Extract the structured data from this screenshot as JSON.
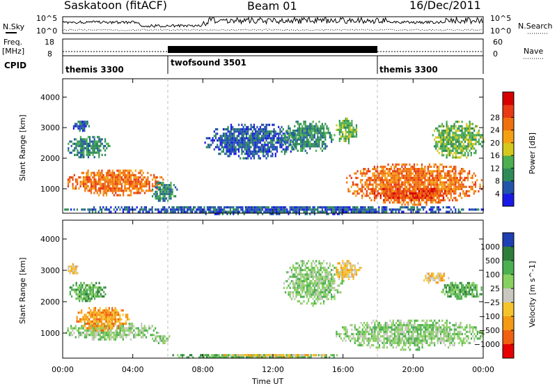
{
  "header": {
    "site": "Saskatoon (fitACF)",
    "beam": "Beam 01",
    "date": "16/Dec/2011"
  },
  "strips": {
    "nsky_label": "N.Sky",
    "nsearch_label": "N.Search",
    "freq_label": "Freq.",
    "freq_unit": "[MHz]",
    "nave_label": "Nave",
    "cpid_label": "CPID",
    "nsky_ticks": [
      "10^5",
      "10^0"
    ],
    "nsearch_ticks": [
      "10^5",
      "10^0"
    ],
    "freq_ticks": [
      "18",
      "8"
    ],
    "nave_ticks": [
      "60",
      "0"
    ]
  },
  "cpid_segments": [
    {
      "name": "themis 3300",
      "start_hour": 0,
      "end_hour": 6
    },
    {
      "name": "twofsound 3501",
      "start_hour": 6,
      "end_hour": 18
    },
    {
      "name": "themis 3300",
      "start_hour": 18,
      "end_hour": 24
    }
  ],
  "chart_data": [
    {
      "type": "heatmap",
      "panel": "power",
      "ylabel": "Slant Range [km]",
      "xlabel": "",
      "xlim": [
        0,
        24
      ],
      "ylim": [
        200,
        4600
      ],
      "x_ticks": [
        "00:00",
        "04:00",
        "08:00",
        "12:00",
        "16:00",
        "20:00",
        "00:00"
      ],
      "y_ticks": [
        1000,
        2000,
        3000,
        4000
      ],
      "colorbar": {
        "label": "Power [dB]",
        "ticks": [
          "4",
          "8",
          "12",
          "16",
          "20",
          "24",
          "28"
        ],
        "colors": [
          "#1a1ae6",
          "#2255aa",
          "#2e8b57",
          "#4caf50",
          "#d4c81c",
          "#f5a014",
          "#f07010",
          "#e83a14",
          "#d60000"
        ]
      },
      "regions": [
        {
          "t0": 0.1,
          "t1": 5.8,
          "r0": 800,
          "r1": 1700,
          "level": 24
        },
        {
          "t0": 0.2,
          "t1": 2.7,
          "r0": 2000,
          "r1": 2800,
          "level": 8
        },
        {
          "t0": 0.5,
          "t1": 1.5,
          "r0": 2900,
          "r1": 3300,
          "level": 4
        },
        {
          "t0": 5.0,
          "t1": 6.5,
          "r0": 600,
          "r1": 1300,
          "level": 8
        },
        {
          "t0": 8.0,
          "t1": 13.5,
          "r0": 2000,
          "r1": 3200,
          "level": 4
        },
        {
          "t0": 12.5,
          "t1": 15.5,
          "r0": 2200,
          "r1": 3300,
          "level": 8
        },
        {
          "t0": 15.5,
          "t1": 16.8,
          "r0": 2500,
          "r1": 3400,
          "level": 12
        },
        {
          "t0": 16.0,
          "t1": 24.0,
          "r0": 500,
          "r1": 1900,
          "level": 24
        },
        {
          "t0": 17.5,
          "t1": 22.0,
          "r0": 600,
          "r1": 1100,
          "level": 28
        },
        {
          "t0": 21.0,
          "t1": 24.0,
          "r0": 2000,
          "r1": 3300,
          "level": 12
        },
        {
          "t0": 0.0,
          "t1": 24.0,
          "r0": 200,
          "r1": 500,
          "level": 4
        }
      ]
    },
    {
      "type": "heatmap",
      "panel": "velocity",
      "ylabel": "Slant Range [km]",
      "xlabel": "Time UT",
      "xlim": [
        0,
        24
      ],
      "ylim": [
        200,
        4600
      ],
      "x_ticks": [
        "00:00",
        "04:00",
        "08:00",
        "12:00",
        "16:00",
        "20:00",
        "00:00"
      ],
      "y_ticks": [
        1000,
        2000,
        3000,
        4000
      ],
      "colorbar": {
        "label": "Velocity [m s^-1]",
        "ticks": [
          "1000",
          "500",
          "100",
          "25",
          "−25",
          "−100",
          "−500",
          "−1000"
        ],
        "colors": [
          "#1f3fb4",
          "#2e7d3a",
          "#4caf50",
          "#88d060",
          "#c8c8c0",
          "#f5c42c",
          "#f59a14",
          "#f06010",
          "#e60000"
        ]
      },
      "regions": [
        {
          "t0": 0.0,
          "t1": 5.5,
          "r0": 800,
          "r1": 1400,
          "level": 25
        },
        {
          "t0": 0.6,
          "t1": 3.8,
          "r0": 1100,
          "r1": 1900,
          "level": -500
        },
        {
          "t0": 0.3,
          "t1": 2.5,
          "r0": 2000,
          "r1": 2700,
          "level": 100
        },
        {
          "t0": 0.2,
          "t1": 1.0,
          "r0": 2900,
          "r1": 3300,
          "level": -100
        },
        {
          "t0": 5.0,
          "t1": 6.2,
          "r0": 700,
          "r1": 1000,
          "level": 25
        },
        {
          "t0": 6.0,
          "t1": 16.0,
          "r0": 200,
          "r1": 400,
          "level": 100
        },
        {
          "t0": 9.0,
          "t1": 15.0,
          "r0": 250,
          "r1": 400,
          "level": -100
        },
        {
          "t0": 12.5,
          "t1": 16.0,
          "r0": 1900,
          "r1": 3400,
          "level": 25
        },
        {
          "t0": 15.5,
          "t1": 17.0,
          "r0": 2700,
          "r1": 3400,
          "level": -100
        },
        {
          "t0": 15.5,
          "t1": 24.0,
          "r0": 500,
          "r1": 1500,
          "level": 25
        },
        {
          "t0": 21.5,
          "t1": 24.0,
          "r0": 2100,
          "r1": 2700,
          "level": 100
        },
        {
          "t0": 20.5,
          "t1": 22.0,
          "r0": 2600,
          "r1": 3000,
          "level": -100
        }
      ]
    }
  ]
}
